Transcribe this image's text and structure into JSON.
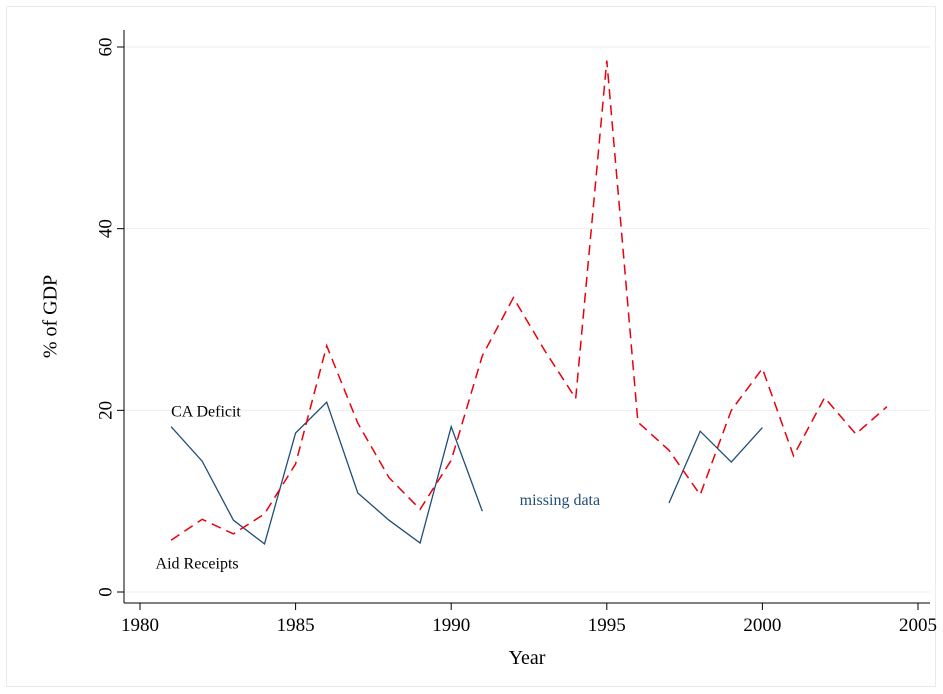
{
  "chart_data": {
    "type": "line",
    "title": "",
    "xlabel": "Year",
    "ylabel": "% of GDP",
    "xlim": [
      1980,
      2005
    ],
    "ylim": [
      0,
      60
    ],
    "xticks": [
      1980,
      1985,
      1990,
      1995,
      2000,
      2005
    ],
    "yticks": [
      0,
      20,
      40,
      60
    ],
    "grid": "horizontal",
    "legend": "none",
    "colors": {
      "ca_deficit": "#1f4e79",
      "aid_receipts": "#e8000b",
      "grid": "#eeeeee",
      "axis": "#000000"
    },
    "series": [
      {
        "key": "ca_deficit",
        "style": "solid",
        "x": [
          1981,
          1982,
          1983,
          1984,
          1985,
          1986,
          1987,
          1988,
          1989,
          1990,
          1991,
          1997,
          1998,
          1999,
          2000
        ],
        "y": [
          18.2,
          14.4,
          7.9,
          5.3,
          17.5,
          20.9,
          10.9,
          7.9,
          5.4,
          18.2,
          8.9,
          9.8,
          17.7,
          14.3,
          18.1
        ],
        "segments": [
          [
            0,
            10
          ],
          [
            11,
            14
          ]
        ]
      },
      {
        "key": "aid_receipts",
        "style": "dashed",
        "x": [
          1981,
          1982,
          1983,
          1984,
          1985,
          1986,
          1987,
          1988,
          1989,
          1990,
          1991,
          1992,
          1993,
          1994,
          1995,
          1996,
          1997,
          1998,
          1999,
          2000,
          2001,
          2002,
          2003,
          2004
        ],
        "y": [
          5.7,
          8.0,
          6.4,
          8.6,
          14.1,
          27.1,
          18.6,
          12.6,
          9.1,
          14.5,
          26.0,
          32.4,
          26.6,
          21.3,
          58.5,
          18.7,
          15.6,
          10.7,
          20.0,
          24.6,
          15.0,
          21.4,
          17.4,
          20.4
        ],
        "segments": [
          [
            0,
            23
          ]
        ]
      }
    ],
    "annotations": [
      {
        "key": "ca_label",
        "text": "CA Deficit",
        "x": 1981.0,
        "y": 19.7,
        "anchor": "start",
        "color": "#000000"
      },
      {
        "key": "aid_label",
        "text": "Aid Receipts",
        "x": 1980.5,
        "y": 3.0,
        "anchor": "start",
        "color": "#000000"
      },
      {
        "key": "missing_label",
        "text": "missing data",
        "x": 1992.2,
        "y": 10.0,
        "anchor": "start",
        "color": "#1f4e79"
      }
    ]
  }
}
